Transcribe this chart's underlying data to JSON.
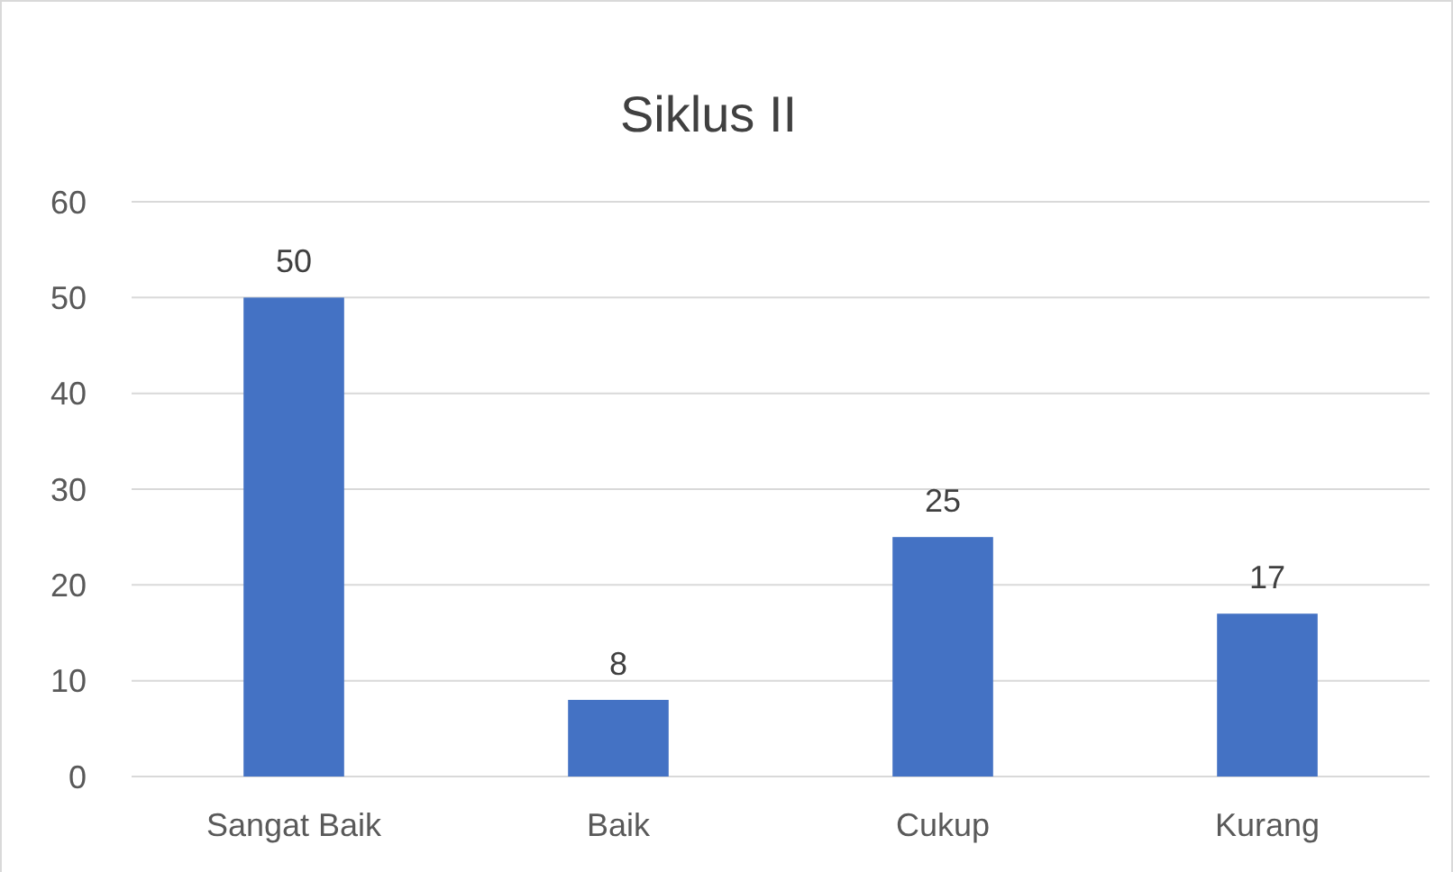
{
  "chart_data": {
    "type": "bar",
    "title": "Siklus II",
    "categories": [
      "Sangat Baik",
      "Baik",
      "Cukup",
      "Kurang"
    ],
    "values": [
      50,
      8,
      25,
      17
    ],
    "color": "#4472c4",
    "ylim": [
      0,
      60
    ],
    "yticks": [
      0,
      10,
      20,
      30,
      40,
      50,
      60
    ],
    "grid": "y",
    "data_labels": true
  }
}
